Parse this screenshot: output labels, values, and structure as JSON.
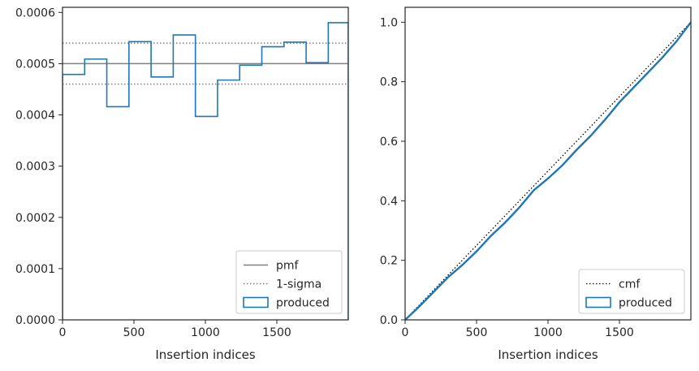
{
  "chart_data": [
    {
      "type": "histogram-step",
      "xlabel": "Insertion indices",
      "ylabel": "",
      "xlim": [
        0,
        2000
      ],
      "ylim": [
        0,
        0.00061
      ],
      "xticks": [
        0,
        500,
        1000,
        1500
      ],
      "yticks": [
        0,
        0.0001,
        0.0002,
        0.0003,
        0.0004,
        0.0005,
        0.0006
      ],
      "ytick_labels": [
        "0.0000",
        "0.0001",
        "0.0002",
        "0.0003",
        "0.0004",
        "0.0005",
        "0.0006"
      ],
      "grid": false,
      "legend_position": "lower-right",
      "bin_edges": [
        0,
        155,
        310,
        465,
        620,
        775,
        930,
        1085,
        1240,
        1395,
        1550,
        1705,
        1860,
        2000
      ],
      "series": [
        {
          "name": "produced",
          "style": "step",
          "color": "#1f77b4",
          "values": [
            0.000479,
            0.000509,
            0.000416,
            0.000543,
            0.000474,
            0.000556,
            0.000397,
            0.000468,
            0.000497,
            0.000533,
            0.000542,
            0.000502,
            0.00058
          ]
        }
      ],
      "reference_lines": [
        {
          "name": "pmf",
          "style": "solid",
          "color": "#808080",
          "y": 0.0005
        },
        {
          "name": "1-sigma",
          "style": "dotted",
          "color": "#808080",
          "y": [
            0.00046,
            0.00054
          ]
        }
      ],
      "legend": [
        "pmf",
        "1-sigma",
        "produced"
      ]
    },
    {
      "type": "line",
      "xlabel": "Insertion indices",
      "ylabel": "",
      "xlim": [
        0,
        2000
      ],
      "ylim": [
        0,
        1.05
      ],
      "xticks": [
        0,
        500,
        1000,
        1500
      ],
      "yticks": [
        0,
        0.2,
        0.4,
        0.6,
        0.8,
        1.0
      ],
      "ytick_labels": [
        "0.0",
        "0.2",
        "0.4",
        "0.6",
        "0.8",
        "1.0"
      ],
      "grid": false,
      "legend_position": "lower-right",
      "series": [
        {
          "name": "cmf",
          "style": "dotted",
          "color": "#000000",
          "x": [
            0,
            2000
          ],
          "y": [
            0,
            1.0
          ]
        },
        {
          "name": "produced",
          "style": "solid",
          "color": "#1f77b4",
          "x": [
            0,
            100,
            200,
            300,
            400,
            500,
            600,
            700,
            800,
            900,
            1000,
            1100,
            1200,
            1300,
            1400,
            1500,
            1600,
            1700,
            1800,
            1900,
            2000
          ],
          "y": [
            0,
            0.045,
            0.094,
            0.143,
            0.184,
            0.23,
            0.282,
            0.327,
            0.378,
            0.435,
            0.475,
            0.519,
            0.571,
            0.619,
            0.673,
            0.731,
            0.781,
            0.831,
            0.881,
            0.936,
            1.0
          ]
        }
      ],
      "legend": [
        "cmf",
        "produced"
      ]
    }
  ]
}
